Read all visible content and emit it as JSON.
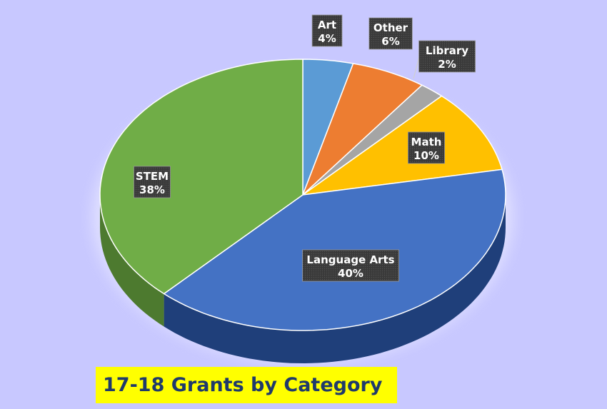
{
  "chart_data": {
    "type": "pie",
    "title": "17-18 Grants by Category",
    "slices": [
      {
        "label": "Art",
        "value": 4,
        "value_label": "4%",
        "color": "#5b9bd5",
        "side_color": "#3d6f9c"
      },
      {
        "label": "Other",
        "value": 6,
        "value_label": "6%",
        "color": "#ed7d31",
        "side_color": "#b35a1f"
      },
      {
        "label": "Library",
        "value": 2,
        "value_label": "2%",
        "color": "#a5a5a5",
        "side_color": "#777777"
      },
      {
        "label": "Math",
        "value": 10,
        "value_label": "10%",
        "color": "#ffc000",
        "side_color": "#bf8f00"
      },
      {
        "label": "Language Arts",
        "value": 40,
        "value_label": "40%",
        "color": "#4472c4",
        "side_color": "#1f3f7a"
      },
      {
        "label": "STEM",
        "value": 38,
        "value_label": "38%",
        "color": "#70ad47",
        "side_color": "#4d7a2f"
      }
    ],
    "style": "3d-pie",
    "label_style": "dark callout boxes"
  }
}
